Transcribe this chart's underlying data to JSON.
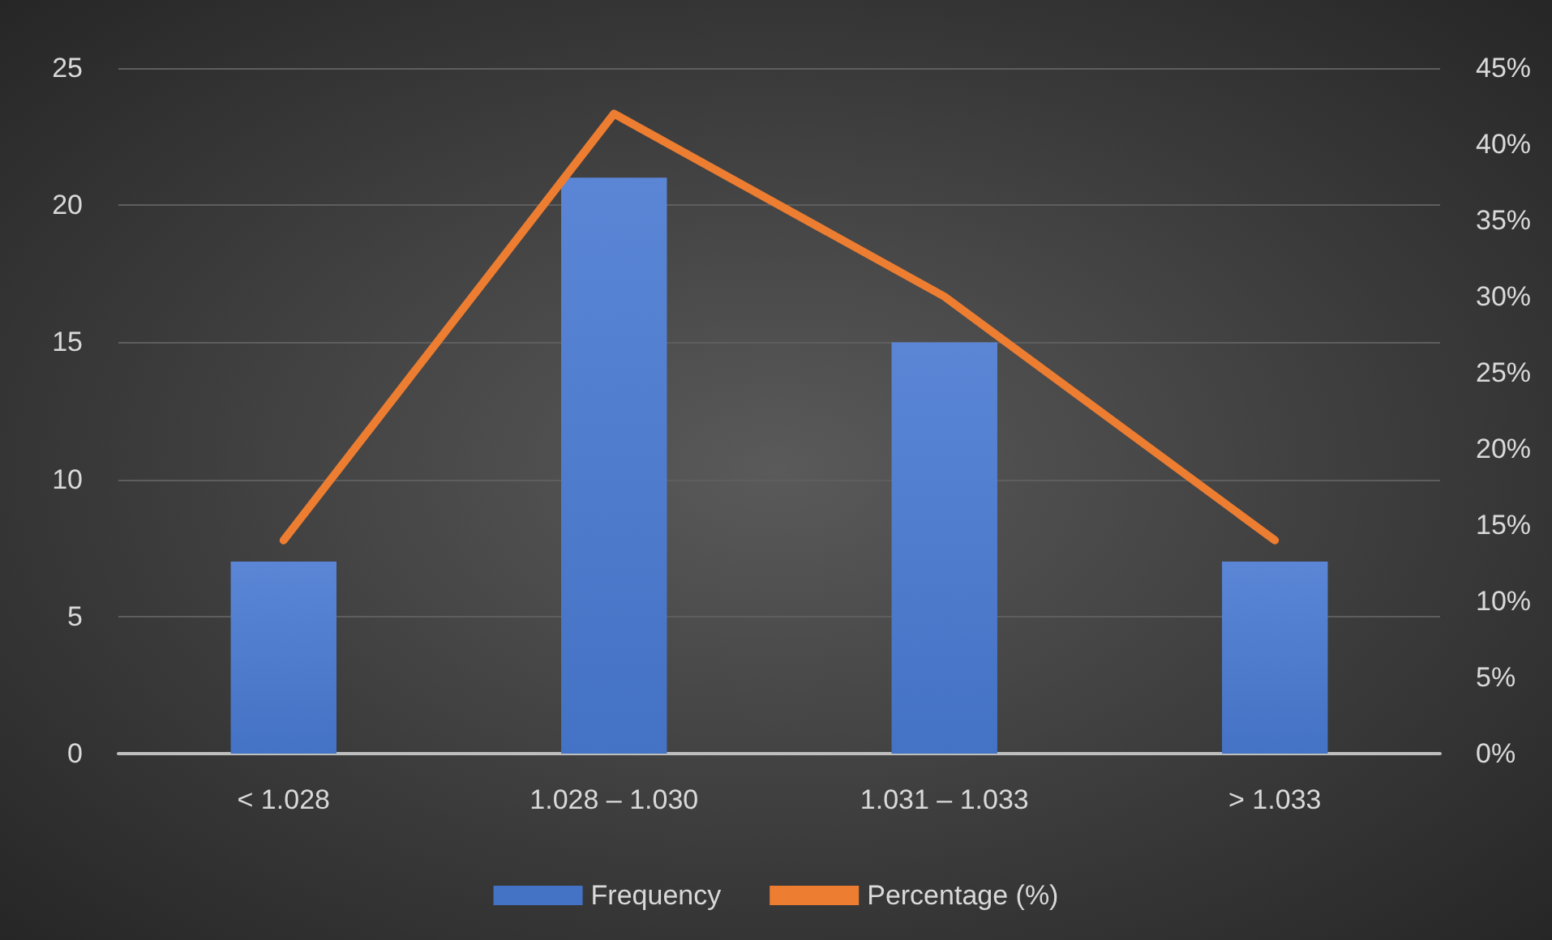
{
  "chart_data": {
    "type": "bar",
    "categories": [
      "< 1.028",
      "1.028 – 1.030",
      "1.031 – 1.033",
      "> 1.033"
    ],
    "series": [
      {
        "name": "Frequency",
        "color": "#4472c4",
        "values": [
          7,
          21,
          15,
          7
        ]
      },
      {
        "name": "Percentage (%)",
        "type": "line",
        "axis": "y2",
        "color": "#ed7d31",
        "values": [
          14,
          42,
          30,
          14
        ]
      }
    ],
    "ylim": [
      0,
      25
    ],
    "yticks": [
      0,
      5,
      10,
      15,
      20,
      25
    ],
    "y2lim": [
      0,
      45
    ],
    "y2ticks": [
      {
        "value": 0,
        "label": "0%"
      },
      {
        "value": 5,
        "label": "5%"
      },
      {
        "value": 10,
        "label": "10%"
      },
      {
        "value": 15,
        "label": "15%"
      },
      {
        "value": 20,
        "label": "20%"
      },
      {
        "value": 25,
        "label": "25%"
      },
      {
        "value": 30,
        "label": "30%"
      },
      {
        "value": 35,
        "label": "35%"
      },
      {
        "value": 40,
        "label": "40%"
      },
      {
        "value": 45,
        "label": "45%"
      }
    ],
    "grid": "y",
    "legend": "bottom",
    "marker": "none",
    "line_style": "solid"
  }
}
